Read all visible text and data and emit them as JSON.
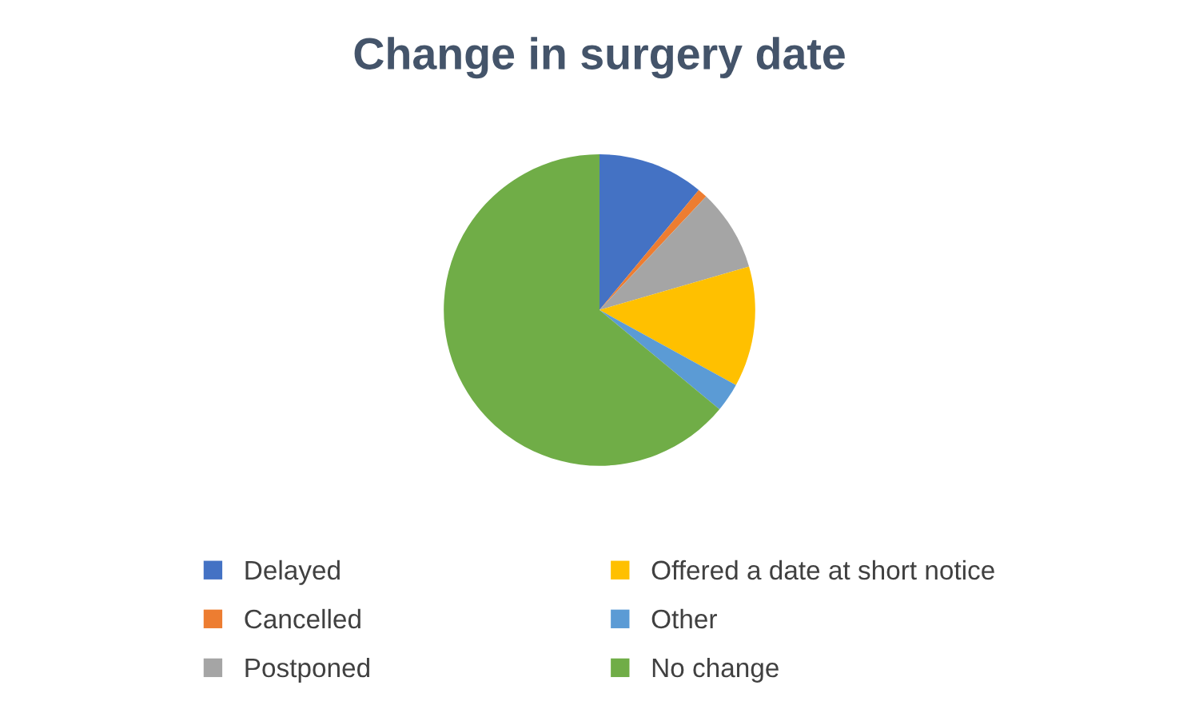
{
  "chart_data": {
    "type": "pie",
    "title": "Change in surgery date",
    "categories": [
      "Delayed",
      "Cancelled",
      "Postponed",
      "Offered a date at short notice",
      "Other",
      "No change"
    ],
    "values": [
      11,
      1,
      8.5,
      12.5,
      3,
      64
    ],
    "colors": [
      "#4472c4",
      "#ed7d31",
      "#a5a5a5",
      "#ffc000",
      "#5b9bd5",
      "#70ad47"
    ],
    "legend": "bottom"
  }
}
